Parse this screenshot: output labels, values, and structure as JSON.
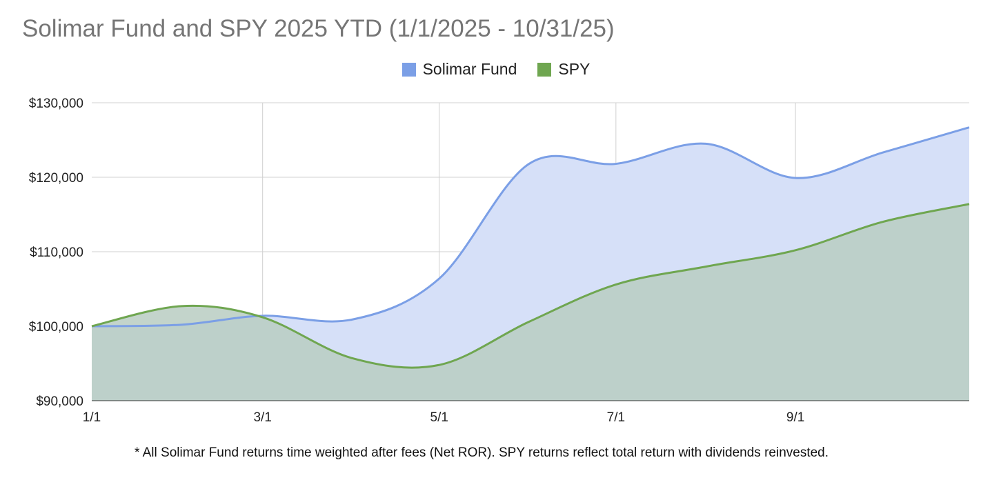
{
  "chart_data": {
    "type": "area",
    "title": "Solimar Fund and SPY 2025 YTD (1/1/2025 - 10/31/25)",
    "x_ticks": [
      "1/1",
      "3/1",
      "5/1",
      "7/1",
      "9/1"
    ],
    "x_months": [
      "2025-01-01",
      "2025-02-01",
      "2025-03-01",
      "2025-04-01",
      "2025-05-01",
      "2025-06-01",
      "2025-07-01",
      "2025-08-01",
      "2025-09-01",
      "2025-10-01",
      "2025-10-31"
    ],
    "ylim": [
      90000,
      130000
    ],
    "y_ticks": [
      90000,
      100000,
      110000,
      120000,
      130000
    ],
    "y_tick_labels": [
      "$90,000",
      "$100,000",
      "$110,000",
      "$120,000",
      "$130,000"
    ],
    "grid": true,
    "legend_position": "top",
    "series": [
      {
        "name": "Solimar Fund",
        "color": "#7b9fe6",
        "fill": "#d6e0f8",
        "values": [
          100000,
          100200,
          101400,
          100900,
          106400,
          121800,
          121800,
          124500,
          119900,
          123300,
          126700
        ]
      },
      {
        "name": "SPY",
        "color": "#6fa650",
        "fill": "#b8cdc2",
        "values": [
          100000,
          102700,
          101200,
          95700,
          94800,
          100600,
          105600,
          108000,
          110200,
          114000,
          116400
        ]
      }
    ],
    "footnote": "* All Solimar Fund returns time weighted after fees (Net ROR). SPY returns reflect total return with dividends reinvested."
  }
}
